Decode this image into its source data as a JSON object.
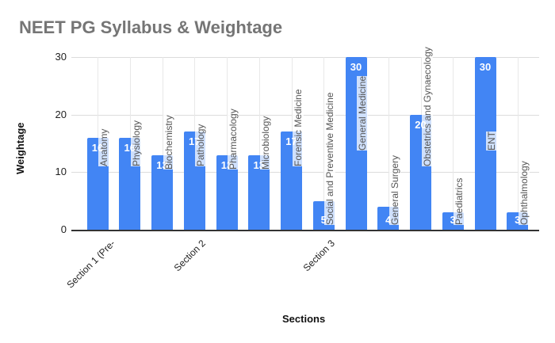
{
  "chart_data": {
    "type": "bar",
    "title": "NEET PG Syllabus & Weightage",
    "xlabel": "Sections",
    "ylabel": "Weightage",
    "ylim": [
      0,
      30
    ],
    "yticks": [
      0,
      10,
      20,
      30
    ],
    "grid": true,
    "legend": "none",
    "categories": [
      "Anatomy",
      "Physiology",
      "Biochemistry",
      "Pathology",
      "Pharmacology",
      "Microbiology",
      "Forensic Medicine",
      "Social and Preventive Medicine",
      "General Medicine",
      "General Surgery",
      "Obstetrics and Gynaecology",
      "Paediatrics",
      "ENT",
      "Ophthalmology"
    ],
    "values": [
      16,
      16,
      13,
      17,
      13,
      13,
      17,
      5,
      30,
      4,
      20,
      3,
      30,
      3
    ],
    "x_group_labels": [
      {
        "label": "Section 1 (Pre-",
        "at_index": 0
      },
      {
        "label": "Section 2",
        "at_index": 3
      },
      {
        "label": "Section 3",
        "at_index": 7
      }
    ],
    "bar_color": "#4285f4"
  }
}
